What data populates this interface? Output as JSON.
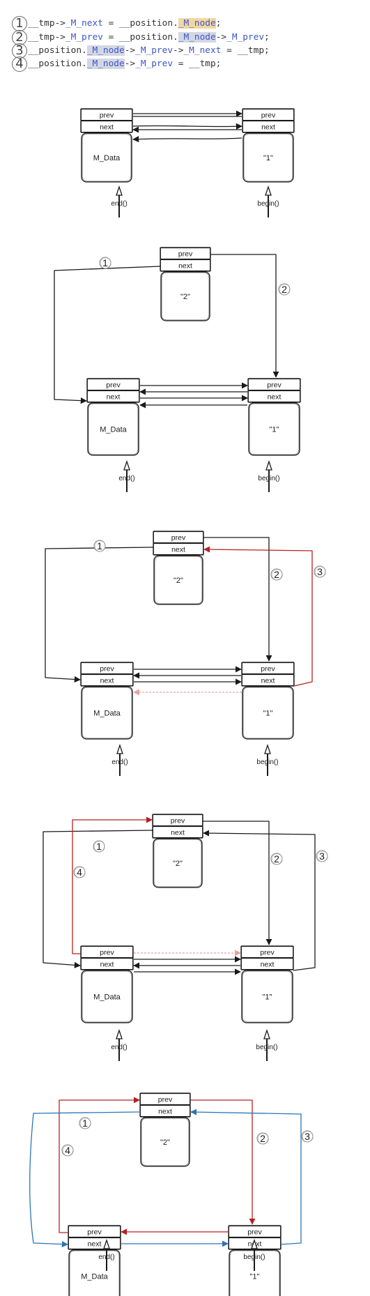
{
  "code_lines": [
    {
      "num": "1",
      "parts": [
        {
          "t": "__tmp->",
          "c": "plain"
        },
        {
          "t": "_M_next",
          "c": "ptr"
        },
        {
          "t": " = __position.",
          "c": "plain"
        },
        {
          "t": "_M_node",
          "c": "hl1"
        },
        {
          "t": ";",
          "c": "plain"
        }
      ]
    },
    {
      "num": "2",
      "parts": [
        {
          "t": "__tmp->",
          "c": "plain"
        },
        {
          "t": "_M_prev",
          "c": "ptr"
        },
        {
          "t": " = __position.",
          "c": "plain"
        },
        {
          "t": "_M_node",
          "c": "hl2"
        },
        {
          "t": "->",
          "c": "plain"
        },
        {
          "t": "_M_prev",
          "c": "ptr"
        },
        {
          "t": ";",
          "c": "plain"
        }
      ]
    },
    {
      "num": "3",
      "parts": [
        {
          "t": "__position.",
          "c": "plain"
        },
        {
          "t": "_M_node",
          "c": "hl2"
        },
        {
          "t": "->",
          "c": "plain"
        },
        {
          "t": "_M_prev",
          "c": "ptr"
        },
        {
          "t": "->",
          "c": "plain"
        },
        {
          "t": "_M_next",
          "c": "ptr"
        },
        {
          "t": " = __tmp;",
          "c": "plain"
        }
      ]
    },
    {
      "num": "4",
      "parts": [
        {
          "t": "__position.",
          "c": "plain"
        },
        {
          "t": "_M_node",
          "c": "hl2"
        },
        {
          "t": "->",
          "c": "plain"
        },
        {
          "t": "_M_prev",
          "c": "ptr"
        },
        {
          "t": " = __tmp;",
          "c": "plain"
        }
      ]
    }
  ],
  "labels": {
    "prev": "prev",
    "next": "next",
    "m_data": "M_Data",
    "node1_value": "\"1\"",
    "node2_value": "\"2\"",
    "end": "end()",
    "begin": "begin()",
    "step1": "1",
    "step2": "2",
    "step3": "3",
    "step4": "4"
  },
  "colors": {
    "ink": "#1a1a1a",
    "red": "#b82020",
    "pink": "#e8a0a0",
    "blue": "#2b74b2",
    "highlight_orange": "#f1d6a4",
    "highlight_blue": "#d3d7e4",
    "pointer_text": "#3e56c4"
  }
}
